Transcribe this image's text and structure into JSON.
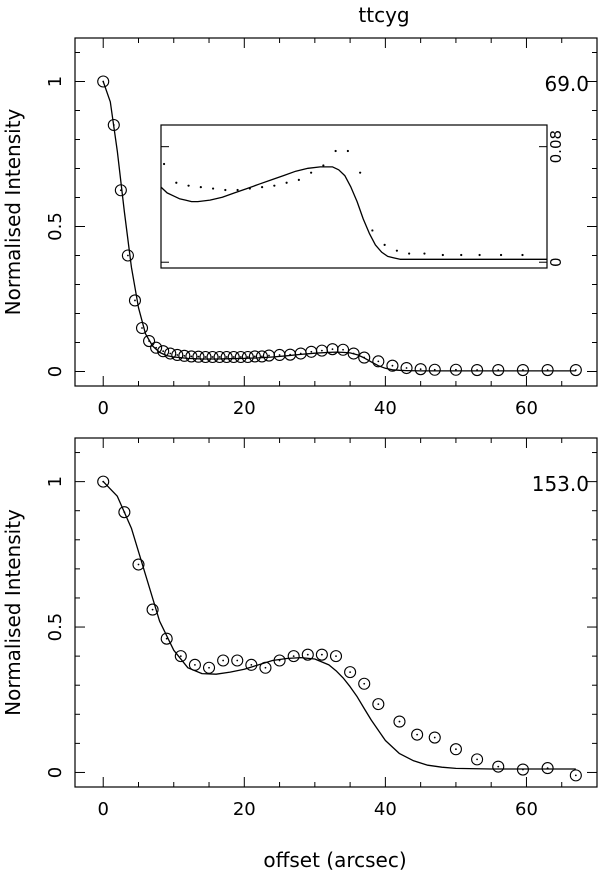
{
  "title": "ttcyg",
  "xlabel": "offset (arcsec)",
  "chart_data": [
    {
      "type": "scatter",
      "panel": "top",
      "annotation": "69.0",
      "ylabel": "Normalised Intensity",
      "xlim": [
        -4,
        70
      ],
      "ylim": [
        -0.05,
        1.15
      ],
      "xticks": [
        0,
        20,
        40,
        60
      ],
      "yticks": [
        0,
        0.5,
        1
      ],
      "ytick_labels": [
        "0",
        "0.5",
        "1"
      ],
      "grid": false,
      "series": [
        {
          "style": "open-circles",
          "x": [
            0,
            1.5,
            2.5,
            3.5,
            4.5,
            5.5,
            6.5,
            7.5,
            8.5,
            9.5,
            10.5,
            11.5,
            12.5,
            13.5,
            14.5,
            15.5,
            16.5,
            17.5,
            18.5,
            19.5,
            20.5,
            21.5,
            22.5,
            23.5,
            25,
            26.5,
            28,
            29.5,
            31,
            32.5,
            34,
            35.5,
            37,
            39,
            41,
            43,
            45,
            47,
            50,
            53,
            56,
            59.5,
            63,
            67
          ],
          "y": [
            1.0,
            0.85,
            0.625,
            0.4,
            0.245,
            0.15,
            0.105,
            0.082,
            0.07,
            0.062,
            0.057,
            0.054,
            0.052,
            0.051,
            0.05,
            0.05,
            0.05,
            0.05,
            0.05,
            0.05,
            0.05,
            0.052,
            0.052,
            0.055,
            0.057,
            0.058,
            0.062,
            0.068,
            0.072,
            0.077,
            0.075,
            0.062,
            0.048,
            0.035,
            0.02,
            0.012,
            0.008,
            0.006,
            0.006,
            0.005,
            0.005,
            0.005,
            0.005,
            0.005
          ]
        },
        {
          "style": "line",
          "x": [
            0,
            1,
            2,
            3,
            4,
            5,
            6,
            7,
            8,
            9,
            10,
            12,
            14,
            16,
            18,
            20,
            22,
            24,
            26,
            28,
            30,
            32,
            33,
            34,
            35,
            36,
            37,
            38,
            39,
            40,
            41,
            42,
            43,
            45,
            50,
            55,
            60,
            67
          ],
          "y": [
            1.0,
            0.93,
            0.76,
            0.55,
            0.36,
            0.22,
            0.13,
            0.088,
            0.066,
            0.055,
            0.05,
            0.045,
            0.043,
            0.043,
            0.044,
            0.045,
            0.047,
            0.05,
            0.054,
            0.059,
            0.063,
            0.066,
            0.067,
            0.066,
            0.064,
            0.058,
            0.047,
            0.033,
            0.02,
            0.011,
            0.006,
            0.004,
            0.003,
            0.002,
            0.002,
            0.002,
            0.002,
            0.002
          ]
        }
      ],
      "inset": {
        "ylim": [
          -0.004,
          0.095
        ],
        "xlim": [
          4,
          67
        ],
        "yticks": [
          0,
          0.08
        ],
        "ytick_labels": [
          "0",
          "0.08"
        ],
        "series": [
          {
            "style": "dots",
            "x": [
              4.5,
              6.5,
              8.5,
              10.5,
              12.5,
              14.5,
              16.5,
              18.5,
              20.5,
              22.5,
              24.5,
              26.5,
              28.5,
              30.5,
              32.5,
              34.5,
              36.5,
              38.5,
              40.5,
              42.5,
              44.5,
              47,
              50,
              53,
              56,
              59.5,
              63
            ],
            "y": [
              0.068,
              0.055,
              0.053,
              0.052,
              0.051,
              0.05,
              0.05,
              0.051,
              0.052,
              0.053,
              0.055,
              0.057,
              0.062,
              0.067,
              0.077,
              0.077,
              0.062,
              0.022,
              0.012,
              0.008,
              0.006,
              0.006,
              0.005,
              0.005,
              0.005,
              0.005,
              0.005
            ]
          },
          {
            "style": "line",
            "x": [
              4,
              5,
              6,
              7,
              8,
              9,
              10,
              12,
              14,
              16,
              18,
              20,
              22,
              24,
              26,
              28,
              30,
              32,
              33,
              34,
              35,
              36,
              37,
              38,
              39,
              40,
              41,
              42,
              43,
              45,
              50,
              55,
              60,
              67
            ],
            "y": [
              0.052,
              0.048,
              0.046,
              0.044,
              0.043,
              0.042,
              0.042,
              0.043,
              0.045,
              0.048,
              0.051,
              0.054,
              0.057,
              0.06,
              0.063,
              0.065,
              0.066,
              0.066,
              0.064,
              0.06,
              0.052,
              0.042,
              0.03,
              0.02,
              0.012,
              0.007,
              0.004,
              0.003,
              0.002,
              0.002,
              0.002,
              0.002,
              0.002,
              0.002
            ]
          }
        ]
      }
    },
    {
      "type": "scatter",
      "panel": "bottom",
      "annotation": "153.0",
      "ylabel": "Normalised Intensity",
      "xlim": [
        -4,
        70
      ],
      "ylim": [
        -0.05,
        1.15
      ],
      "xticks": [
        0,
        20,
        40,
        60
      ],
      "yticks": [
        0,
        0.5,
        1
      ],
      "ytick_labels": [
        "0",
        "0.5",
        "1"
      ],
      "grid": false,
      "series": [
        {
          "style": "open-circles",
          "x": [
            0,
            3,
            5,
            7,
            9,
            11,
            13,
            15,
            17,
            19,
            21,
            23,
            25,
            27,
            29,
            31,
            33,
            35,
            37,
            39,
            42,
            44.5,
            47,
            50,
            53,
            56,
            59.5,
            63,
            67
          ],
          "y": [
            1.0,
            0.895,
            0.715,
            0.56,
            0.46,
            0.4,
            0.37,
            0.36,
            0.385,
            0.385,
            0.37,
            0.36,
            0.385,
            0.4,
            0.405,
            0.405,
            0.4,
            0.345,
            0.305,
            0.235,
            0.175,
            0.13,
            0.12,
            0.08,
            0.045,
            0.02,
            0.01,
            0.015,
            -0.01
          ]
        },
        {
          "style": "line",
          "x": [
            0,
            2,
            4,
            6,
            8,
            10,
            12,
            14,
            16,
            18,
            20,
            22,
            24,
            26,
            28,
            30,
            32,
            33,
            34,
            35,
            36,
            37,
            38,
            39,
            40,
            42,
            44,
            46,
            48,
            50,
            55,
            60,
            67
          ],
          "y": [
            1.0,
            0.95,
            0.84,
            0.68,
            0.52,
            0.42,
            0.36,
            0.34,
            0.338,
            0.345,
            0.355,
            0.37,
            0.385,
            0.392,
            0.395,
            0.39,
            0.37,
            0.35,
            0.325,
            0.295,
            0.26,
            0.22,
            0.18,
            0.145,
            0.11,
            0.065,
            0.04,
            0.025,
            0.018,
            0.014,
            0.012,
            0.012,
            0.012
          ]
        }
      ]
    }
  ]
}
